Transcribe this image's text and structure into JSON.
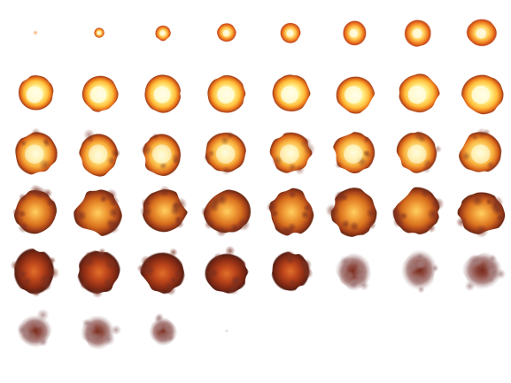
{
  "sprite_sheet": {
    "subject": "explosion-animation",
    "columns": 8,
    "frame_count": 44,
    "background_color": "#ffffff",
    "palette": {
      "core": "#fffce0",
      "hot": "#ffd84a",
      "flame": "#f08a1e",
      "ember": "#b8441a",
      "char": "#6a2410",
      "smoke": "#8a5a55"
    },
    "frames": [
      {
        "stage": "spark"
      },
      {
        "stage": "ignite"
      },
      {
        "stage": "ignite"
      },
      {
        "stage": "ignite"
      },
      {
        "stage": "ignite"
      },
      {
        "stage": "ignite"
      },
      {
        "stage": "ignite"
      },
      {
        "stage": "ignite"
      },
      {
        "stage": "fireball"
      },
      {
        "stage": "fireball"
      },
      {
        "stage": "fireball"
      },
      {
        "stage": "fireball"
      },
      {
        "stage": "fireball"
      },
      {
        "stage": "fireball"
      },
      {
        "stage": "fireball"
      },
      {
        "stage": "fireball"
      },
      {
        "stage": "peak"
      },
      {
        "stage": "peak"
      },
      {
        "stage": "peak"
      },
      {
        "stage": "peak"
      },
      {
        "stage": "peak"
      },
      {
        "stage": "peak"
      },
      {
        "stage": "peak"
      },
      {
        "stage": "peak"
      },
      {
        "stage": "burning"
      },
      {
        "stage": "burning"
      },
      {
        "stage": "burning"
      },
      {
        "stage": "burning"
      },
      {
        "stage": "burning"
      },
      {
        "stage": "burning"
      },
      {
        "stage": "burning"
      },
      {
        "stage": "burning"
      },
      {
        "stage": "embers"
      },
      {
        "stage": "embers"
      },
      {
        "stage": "embers"
      },
      {
        "stage": "embers"
      },
      {
        "stage": "embers"
      },
      {
        "stage": "smoke"
      },
      {
        "stage": "smoke"
      },
      {
        "stage": "smoke"
      },
      {
        "stage": "smoke"
      },
      {
        "stage": "smoke"
      },
      {
        "stage": "smoke"
      },
      {
        "stage": "dust"
      }
    ]
  }
}
